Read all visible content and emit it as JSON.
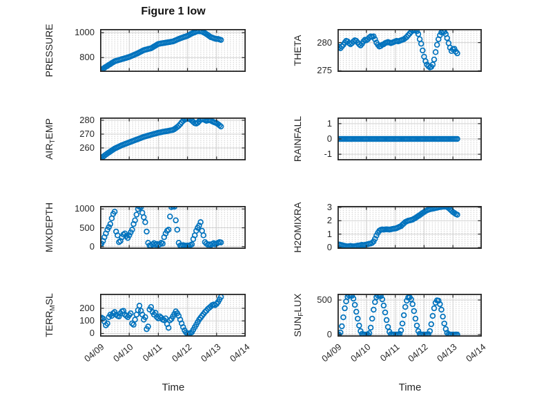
{
  "figure": {
    "title": "Figure 1 low",
    "colors": {
      "marker": "#0072BD",
      "grid": "#d2d2d2",
      "axis": "#242424",
      "text": "#262626"
    }
  },
  "x_axis": {
    "label": "Time",
    "xlim": [
      0,
      5
    ],
    "tick_labels": [
      "04/09",
      "04/10",
      "04/11",
      "04/12",
      "04/13",
      "04/14"
    ]
  },
  "chart_data": {
    "type": "scatter",
    "marker": "o",
    "x_unit": "days since 04/09",
    "grid": "on",
    "minor_grid": "on",
    "x": [
      0,
      0.05,
      0.1,
      0.15,
      0.2,
      0.25,
      0.3,
      0.35,
      0.4,
      0.45,
      0.5,
      0.55,
      0.6,
      0.65,
      0.7,
      0.75,
      0.8,
      0.85,
      0.9,
      0.95,
      1,
      1.05,
      1.1,
      1.15,
      1.2,
      1.25,
      1.3,
      1.35,
      1.4,
      1.45,
      1.5,
      1.55,
      1.6,
      1.65,
      1.7,
      1.75,
      1.8,
      1.85,
      1.9,
      1.95,
      2,
      2.05,
      2.1,
      2.15,
      2.2,
      2.25,
      2.3,
      2.35,
      2.4,
      2.45,
      2.5,
      2.55,
      2.6,
      2.65,
      2.7,
      2.75,
      2.8,
      2.85,
      2.9,
      2.95,
      3,
      3.05,
      3.1,
      3.15,
      3.2,
      3.25,
      3.3,
      3.35,
      3.4,
      3.45,
      3.5,
      3.55,
      3.6,
      3.65,
      3.7,
      3.75,
      3.8,
      3.85,
      3.9,
      3.95,
      4,
      4.05,
      4.1,
      4.15
    ],
    "series": [
      {
        "name": "PRESSURE",
        "ylabel_pre": "PRESSURE",
        "ylabel_sub": "",
        "ylabel_post": "",
        "ylim": [
          685,
          1030
        ],
        "yticks": [
          800,
          1000
        ],
        "y": [
          695,
          702,
          710,
          718,
          726,
          733,
          741,
          748,
          756,
          763,
          770,
          774,
          777,
          781,
          784,
          788,
          791,
          795,
          798,
          802,
          805,
          810,
          815,
          820,
          825,
          830,
          836,
          842,
          848,
          854,
          860,
          863,
          866,
          869,
          872,
          875,
          882,
          889,
          896,
          903,
          910,
          912,
          914,
          916,
          918,
          920,
          922,
          924,
          926,
          928,
          930,
          935,
          940,
          945,
          950,
          955,
          959,
          963,
          967,
          971,
          975,
          981,
          988,
          994,
          1000,
          1004,
          1009,
          1013,
          1012,
          1011,
          1010,
          1003,
          997,
          990,
          982,
          973,
          965,
          961,
          956,
          952,
          950,
          950,
          946,
          942
        ]
      },
      {
        "name": "THETA",
        "ylabel_pre": "THETA",
        "ylabel_sub": "",
        "ylabel_post": "",
        "ylim": [
          274.8,
          282.4
        ],
        "yticks": [
          275,
          280
        ],
        "y": [
          279.4,
          279.2,
          279,
          279.3,
          279.6,
          280,
          280.3,
          280.2,
          279.9,
          279.7,
          279.9,
          280.2,
          280.4,
          280.3,
          280,
          279.7,
          279.5,
          279.8,
          280.2,
          280.5,
          280.4,
          280.6,
          280.9,
          281.1,
          281,
          281.1,
          280.6,
          280,
          279.6,
          279.3,
          279.4,
          279.6,
          279.7,
          279.9,
          280,
          280.1,
          280,
          279.9,
          280,
          280.1,
          280.2,
          280.3,
          280.2,
          280.3,
          280.4,
          280.5,
          280.6,
          280.8,
          281,
          281.3,
          281.6,
          281.9,
          282.1,
          282.2,
          282.2,
          282,
          281.5,
          280.6,
          279.8,
          278.6,
          277.5,
          276.7,
          276.1,
          275.8,
          275.6,
          275.7,
          276.1,
          277,
          278.3,
          279.6,
          280.6,
          281.3,
          281.8,
          282,
          281.9,
          281.5,
          280.8,
          279.9,
          279.1,
          278.5,
          278.8,
          278.9,
          278.4,
          278.1
        ]
      },
      {
        "name": "AIR_TEMP",
        "ylabel_pre": "AIR",
        "ylabel_sub": "T",
        "ylabel_post": "EMP",
        "ylim": [
          251,
          282
        ],
        "yticks": [
          260,
          270,
          280
        ],
        "y": [
          252,
          252.8,
          253.6,
          254.4,
          255.2,
          256,
          256.7,
          257.4,
          258.1,
          258.8,
          259.5,
          260,
          260.5,
          261,
          261.5,
          262,
          262.4,
          262.8,
          263.2,
          263.6,
          264,
          264.4,
          264.8,
          265.2,
          265.6,
          266,
          266.4,
          266.8,
          267.2,
          267.6,
          268,
          268.3,
          268.6,
          268.9,
          269.2,
          269.5,
          269.8,
          270.1,
          270.4,
          270.7,
          271,
          271.2,
          271.4,
          271.6,
          271.8,
          272,
          272.2,
          272.4,
          272.6,
          272.8,
          273,
          273.6,
          274.3,
          275.1,
          276,
          277.2,
          278.5,
          279.6,
          280.4,
          280.9,
          281.1,
          281,
          280.6,
          279.8,
          278.8,
          277.9,
          277.6,
          278.2,
          279.3,
          280.3,
          280.8,
          280.6,
          280.1,
          279.6,
          279.9,
          280.2,
          279.8,
          279.2,
          278.7,
          278.3,
          277.9,
          277.2,
          276.4,
          275.5
        ]
      },
      {
        "name": "RAINFALL",
        "ylabel_pre": "RAINFALL",
        "ylabel_sub": "",
        "ylabel_post": "",
        "ylim": [
          -1.4,
          1.4
        ],
        "yticks": [
          -1,
          0,
          1
        ],
        "y": [
          0,
          0,
          0,
          0,
          0,
          0,
          0,
          0,
          0,
          0,
          0,
          0,
          0,
          0,
          0,
          0,
          0,
          0,
          0,
          0,
          0,
          0,
          0,
          0,
          0,
          0,
          0,
          0,
          0,
          0,
          0,
          0,
          0,
          0,
          0,
          0,
          0,
          0,
          0,
          0,
          0,
          0,
          0,
          0,
          0,
          0,
          0,
          0,
          0,
          0,
          0,
          0,
          0,
          0,
          0,
          0,
          0,
          0,
          0,
          0,
          0,
          0,
          0,
          0,
          0,
          0,
          0,
          0,
          0,
          0,
          0,
          0,
          0,
          0,
          0,
          0,
          0,
          0,
          0,
          0,
          0,
          0,
          0,
          0
        ]
      },
      {
        "name": "MIXDEPTH",
        "ylabel_pre": "MIXDEPTH",
        "ylabel_sub": "",
        "ylabel_post": "",
        "ylim": [
          -60,
          1080
        ],
        "yticks": [
          0,
          500,
          1000
        ],
        "y": [
          60,
          80,
          150,
          250,
          350,
          450,
          520,
          600,
          750,
          870,
          930,
          400,
          300,
          120,
          150,
          250,
          320,
          350,
          280,
          230,
          300,
          380,
          450,
          600,
          700,
          850,
          1000,
          1060,
          1050,
          900,
          780,
          650,
          400,
          100,
          30,
          20,
          60,
          90,
          50,
          70,
          40,
          60,
          100,
          80,
          250,
          350,
          420,
          450,
          800,
          1050,
          1070,
          1060,
          700,
          450,
          100,
          30,
          20,
          40,
          30,
          20,
          30,
          20,
          40,
          60,
          200,
          300,
          420,
          500,
          560,
          650,
          420,
          300,
          120,
          80,
          50,
          60,
          40,
          70,
          90,
          60,
          80,
          100,
          120,
          110
        ]
      },
      {
        "name": "H2OMIXRA",
        "ylabel_pre": "H2OMIXRA",
        "ylabel_sub": "",
        "ylabel_post": "",
        "ylim": [
          -0.1,
          3.1
        ],
        "yticks": [
          0,
          1,
          2,
          3
        ],
        "y": [
          0.25,
          0.22,
          0.2,
          0.18,
          0.15,
          0.12,
          0.1,
          0.08,
          0.1,
          0.12,
          0.1,
          0.08,
          0.1,
          0.12,
          0.15,
          0.15,
          0.18,
          0.2,
          0.18,
          0.2,
          0.22,
          0.25,
          0.28,
          0.3,
          0.35,
          0.45,
          0.65,
          0.9,
          1.1,
          1.25,
          1.32,
          1.35,
          1.33,
          1.35,
          1.36,
          1.35,
          1.34,
          1.36,
          1.38,
          1.4,
          1.42,
          1.45,
          1.5,
          1.55,
          1.6,
          1.7,
          1.8,
          1.9,
          1.95,
          2,
          2.02,
          2.05,
          2.08,
          2.15,
          2.2,
          2.28,
          2.35,
          2.42,
          2.5,
          2.58,
          2.65,
          2.72,
          2.78,
          2.82,
          2.85,
          2.88,
          2.9,
          2.92,
          2.95,
          2.97,
          3,
          3.02,
          3.03,
          3.05,
          3.05,
          3.06,
          3.02,
          2.95,
          2.85,
          2.75,
          2.65,
          2.58,
          2.5,
          2.45
        ]
      },
      {
        "name": "TERR_MSL",
        "ylabel_pre": "TERR",
        "ylabel_sub": "M",
        "ylabel_post": "SL",
        "ylim": [
          -25,
          315
        ],
        "yticks": [
          0,
          100,
          200
        ],
        "y": [
          120,
          125,
          118,
          95,
          65,
          80,
          130,
          150,
          140,
          160,
          170,
          150,
          140,
          135,
          160,
          175,
          180,
          150,
          140,
          130,
          145,
          160,
          80,
          70,
          110,
          150,
          185,
          220,
          180,
          150,
          110,
          130,
          35,
          55,
          190,
          210,
          170,
          150,
          165,
          130,
          120,
          135,
          125,
          110,
          105,
          120,
          75,
          45,
          105,
          115,
          135,
          155,
          175,
          160,
          140,
          110,
          80,
          50,
          25,
          8,
          0,
          0,
          3,
          10,
          30,
          50,
          70,
          90,
          110,
          125,
          140,
          155,
          170,
          180,
          195,
          205,
          215,
          225,
          230,
          225,
          235,
          250,
          270,
          290
        ]
      },
      {
        "name": "SUN_FLUX",
        "ylabel_pre": "SUN",
        "ylabel_sub": "F",
        "ylabel_post": "LUX",
        "ylim": [
          -30,
          590
        ],
        "yticks": [
          0,
          500
        ],
        "y": [
          0,
          0,
          30,
          120,
          250,
          380,
          480,
          545,
          565,
          570,
          560,
          520,
          430,
          330,
          230,
          130,
          50,
          10,
          0,
          0,
          0,
          0,
          20,
          100,
          230,
          360,
          470,
          540,
          565,
          570,
          555,
          510,
          420,
          320,
          210,
          110,
          40,
          5,
          0,
          0,
          0,
          0,
          0,
          10,
          60,
          160,
          280,
          400,
          490,
          535,
          540,
          510,
          440,
          340,
          230,
          130,
          50,
          10,
          0,
          0,
          0,
          0,
          0,
          5,
          50,
          150,
          270,
          380,
          460,
          495,
          490,
          440,
          360,
          260,
          160,
          80,
          25,
          5,
          0,
          0,
          0,
          0,
          0,
          0
        ]
      }
    ]
  }
}
